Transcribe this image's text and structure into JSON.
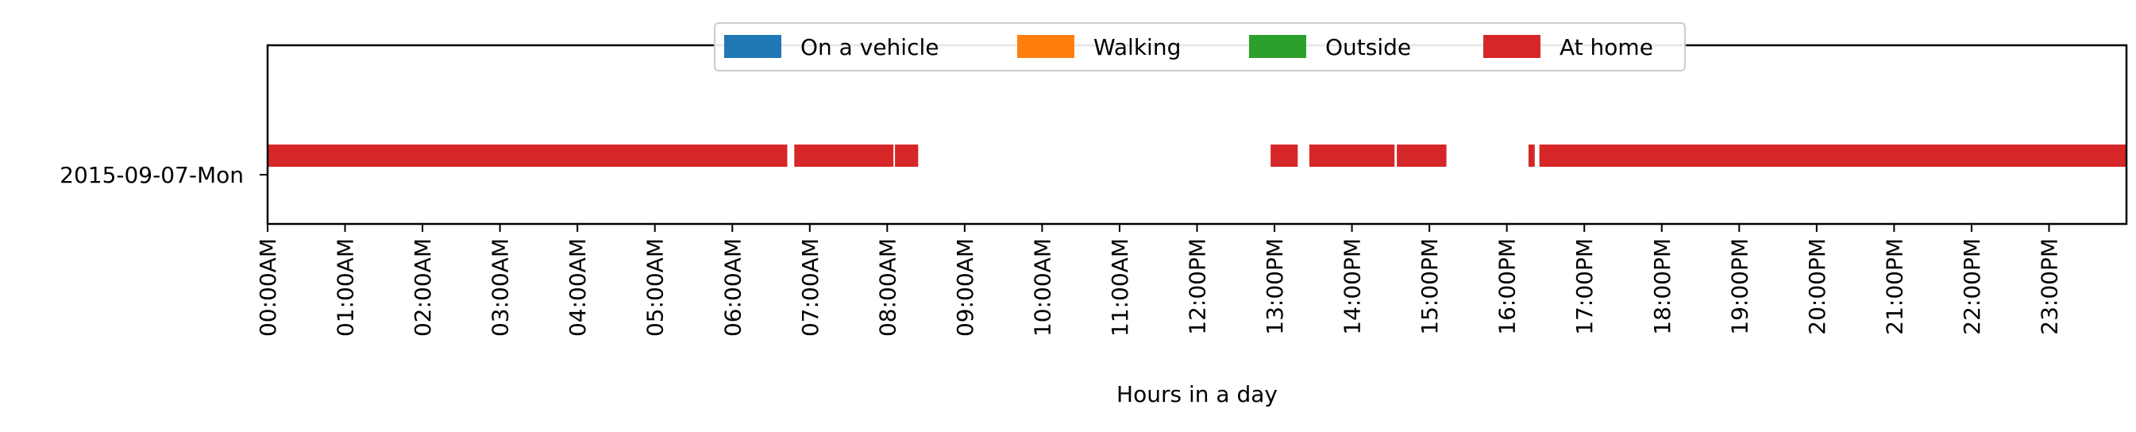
{
  "chart_data": {
    "type": "timeline",
    "xlabel": "Hours in a day",
    "ylabel": "",
    "xlim": [
      0,
      24
    ],
    "categories": [
      "2015-09-07-Mon"
    ],
    "x_ticks": [
      "00:00AM",
      "01:00AM",
      "02:00AM",
      "03:00AM",
      "04:00AM",
      "05:00AM",
      "06:00AM",
      "07:00AM",
      "08:00AM",
      "09:00AM",
      "10:00AM",
      "11:00AM",
      "12:00PM",
      "13:00PM",
      "14:00PM",
      "15:00PM",
      "16:00PM",
      "17:00PM",
      "18:00PM",
      "19:00PM",
      "20:00PM",
      "21:00PM",
      "22:00PM",
      "23:00PM"
    ],
    "legend_position": "top-center",
    "grid": false,
    "series": [
      {
        "name": "On a vehicle",
        "color": "#1f77b4",
        "segments": []
      },
      {
        "name": "Walking",
        "color": "#ff7f0e",
        "segments": []
      },
      {
        "name": "Outside",
        "color": "#2ca02c",
        "segments": []
      },
      {
        "name": "At home",
        "color": "#d62728",
        "segments": [
          [
            0.0,
            6.71
          ],
          [
            6.8,
            8.08
          ],
          [
            8.1,
            8.4
          ],
          [
            12.95,
            13.3
          ],
          [
            13.45,
            14.55
          ],
          [
            14.58,
            15.22
          ],
          [
            16.28,
            16.36
          ],
          [
            16.42,
            24.0
          ]
        ]
      }
    ]
  }
}
